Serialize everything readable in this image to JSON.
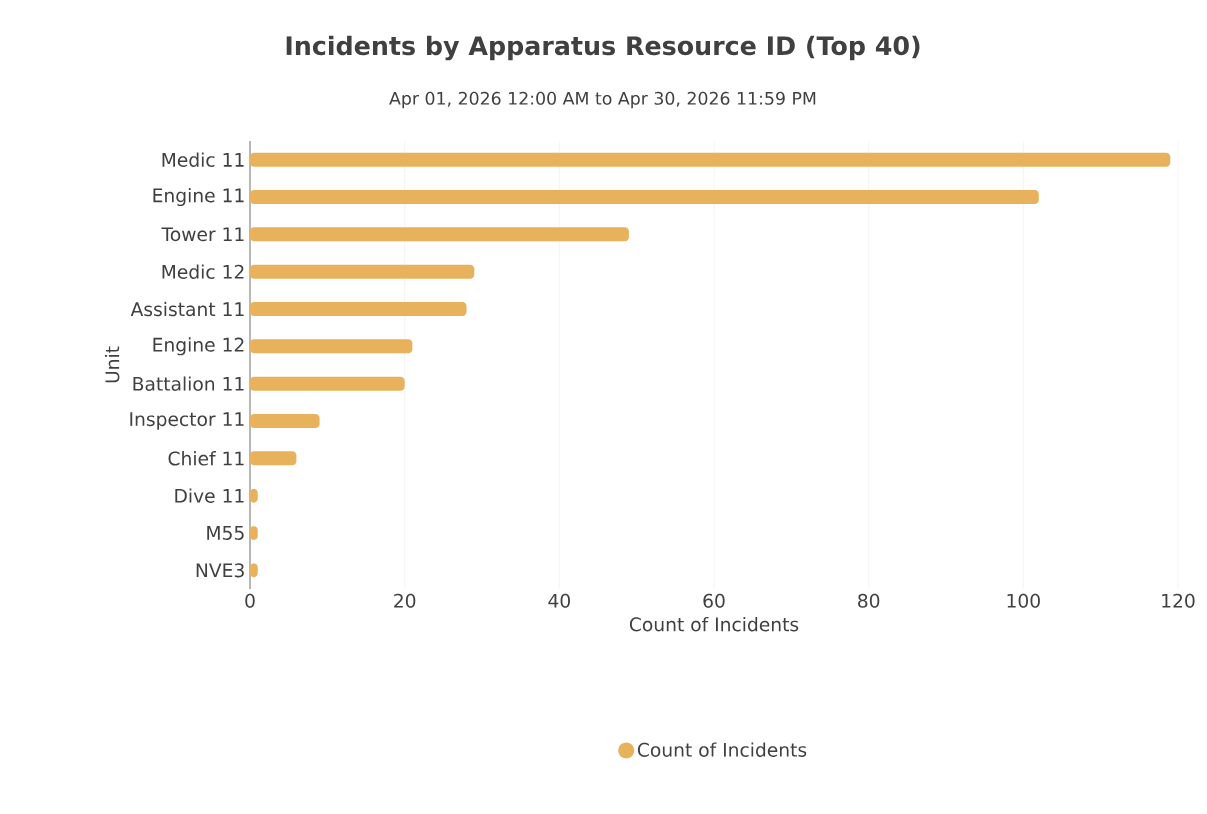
{
  "chart_data": {
    "type": "bar",
    "orientation": "horizontal",
    "title": "Incidents by Apparatus Resource ID (Top 40)",
    "subtitle": "Apr 01, 2026 12:00 AM to Apr 30, 2026 11:59 PM",
    "xlabel": "Count of Incidents",
    "ylabel": "Unit",
    "categories": [
      "Medic 11",
      "Engine 11",
      "Tower 11",
      "Medic 12",
      "Assistant 11",
      "Engine 12",
      "Battalion 11",
      "Inspector 11",
      "Chief 11",
      "Dive 11",
      "M55",
      "NVE3"
    ],
    "series": [
      {
        "name": "Count of Incidents",
        "color": "#e8b25c",
        "values": [
          119,
          102,
          49,
          29,
          28,
          21,
          20,
          9,
          6,
          1,
          1,
          1
        ]
      }
    ],
    "xlim": [
      0,
      120
    ],
    "xticks": [
      0,
      20,
      40,
      60,
      80,
      100,
      120
    ],
    "grid": "x",
    "legend": "bottom"
  }
}
